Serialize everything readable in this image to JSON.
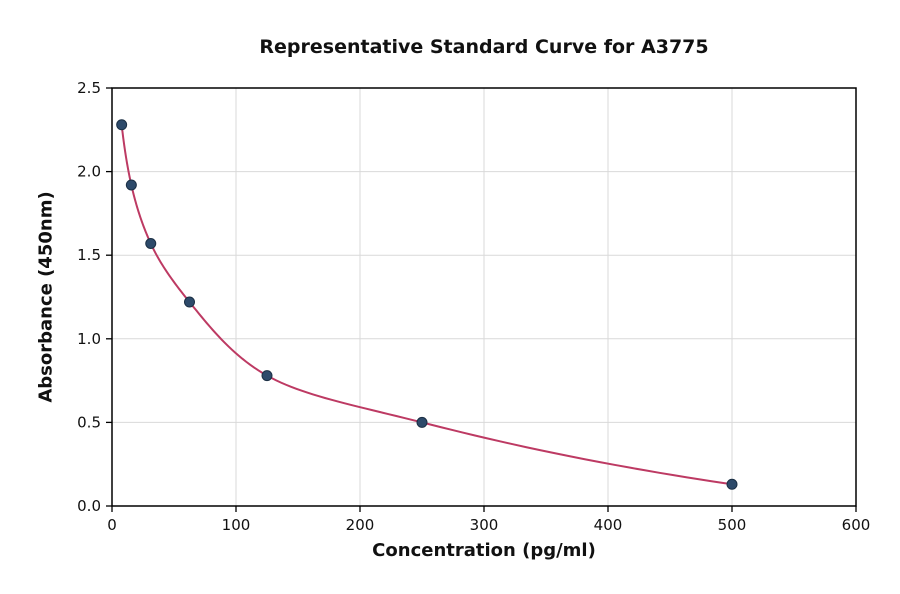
{
  "chart_data": {
    "type": "scatter",
    "title": "Representative Standard Curve for A3775",
    "xlabel": "Concentration (pg/ml)",
    "ylabel": "Absorbance (450nm)",
    "xlim": [
      0,
      600
    ],
    "ylim": [
      0,
      2.5
    ],
    "x_ticks": [
      0,
      100,
      200,
      300,
      400,
      500,
      600
    ],
    "x_tick_labels": [
      "0",
      "100",
      "200",
      "300",
      "400",
      "500",
      "600"
    ],
    "y_ticks": [
      0.0,
      0.5,
      1.0,
      1.5,
      2.0,
      2.5
    ],
    "y_tick_labels": [
      "0.0",
      "0.5",
      "1.0",
      "1.5",
      "2.0",
      "2.5"
    ],
    "grid": true,
    "legend": "none",
    "series": [
      {
        "name": "standard-points",
        "points": [
          {
            "x": 7.8,
            "y": 2.28
          },
          {
            "x": 15.6,
            "y": 1.92
          },
          {
            "x": 31.25,
            "y": 1.57
          },
          {
            "x": 62.5,
            "y": 1.22
          },
          {
            "x": 125,
            "y": 0.78
          },
          {
            "x": 250,
            "y": 0.5
          },
          {
            "x": 500,
            "y": 0.13
          }
        ]
      }
    ],
    "colors": {
      "point_fill": "#2d4a6a",
      "point_edge": "#1b2f44",
      "curve": "#bd3a63",
      "grid": "#d9d9d9",
      "axis": "#000000",
      "text": "#111111"
    }
  }
}
